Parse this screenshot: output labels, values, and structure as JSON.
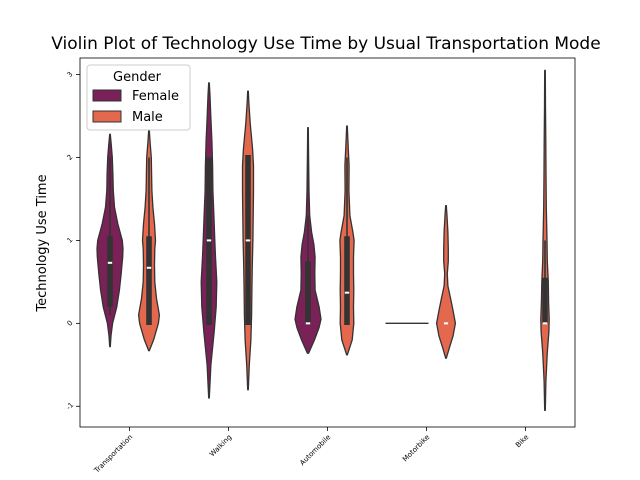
{
  "chart_data": {
    "type": "violin",
    "title": "Violin Plot of Technology Use Time by Usual Transportation Mode",
    "xlabel": "",
    "ylabel": "Technology Use Time",
    "ylim": [
      -1.25,
      3.2
    ],
    "yticks": [
      -1,
      0,
      1,
      2,
      3
    ],
    "categories": [
      "Public Transportation",
      "Walking",
      "Automobile",
      "Motorbike",
      "Bike"
    ],
    "category_labels_visible": [
      "Transportation",
      "Walking",
      "Automobile",
      "Motorbike",
      "Bike"
    ],
    "legend": {
      "title": "Gender",
      "position": "upper-left"
    },
    "series": [
      {
        "name": "Female",
        "color": "#7a2157",
        "violins": [
          {
            "category": "Public Transportation",
            "min": -0.28,
            "max": 2.28,
            "q1": 0.2,
            "median": 0.73,
            "q3": 1.05,
            "whisker_low": 0.1,
            "whisker_high": 2.0,
            "profile": [
              [
                -0.28,
                0.02
              ],
              [
                -0.15,
                0.08
              ],
              [
                0.0,
                0.2
              ],
              [
                0.2,
                0.52
              ],
              [
                0.4,
                0.72
              ],
              [
                0.6,
                0.86
              ],
              [
                0.8,
                0.98
              ],
              [
                0.9,
                1.0
              ],
              [
                1.0,
                0.95
              ],
              [
                1.2,
                0.6
              ],
              [
                1.4,
                0.35
              ],
              [
                1.6,
                0.25
              ],
              [
                1.8,
                0.22
              ],
              [
                2.0,
                0.18
              ],
              [
                2.15,
                0.1
              ],
              [
                2.28,
                0.02
              ]
            ]
          },
          {
            "category": "Walking",
            "min": -0.9,
            "max": 2.9,
            "q1": -0.02,
            "median": 1.0,
            "q3": 2.0,
            "whisker_low": -0.02,
            "whisker_high": 2.0,
            "profile": [
              [
                -0.9,
                0.02
              ],
              [
                -0.5,
                0.15
              ],
              [
                -0.1,
                0.4
              ],
              [
                0.2,
                0.55
              ],
              [
                0.5,
                0.6
              ],
              [
                0.8,
                0.5
              ],
              [
                1.0,
                0.45
              ],
              [
                1.3,
                0.38
              ],
              [
                1.6,
                0.3
              ],
              [
                1.9,
                0.28
              ],
              [
                2.2,
                0.22
              ],
              [
                2.5,
                0.14
              ],
              [
                2.75,
                0.08
              ],
              [
                2.9,
                0.02
              ]
            ]
          },
          {
            "category": "Automobile",
            "min": -0.36,
            "max": 2.36,
            "q1": 0.0,
            "median": 0.0,
            "q3": 0.75,
            "whisker_low": 0.0,
            "whisker_high": 1.3,
            "profile": [
              [
                -0.36,
                0.05
              ],
              [
                -0.2,
                0.5
              ],
              [
                -0.05,
                0.85
              ],
              [
                0.05,
                1.0
              ],
              [
                0.2,
                0.85
              ],
              [
                0.4,
                0.55
              ],
              [
                0.6,
                0.52
              ],
              [
                0.8,
                0.55
              ],
              [
                0.95,
                0.45
              ],
              [
                1.1,
                0.28
              ],
              [
                1.3,
                0.13
              ],
              [
                1.6,
                0.08
              ],
              [
                2.0,
                0.05
              ],
              [
                2.36,
                0.02
              ]
            ]
          },
          {
            "category": "Motorbike",
            "min": 0.0,
            "max": 0.0,
            "q1": 0.0,
            "median": 0.0,
            "q3": 0.0,
            "whisker_low": 0.0,
            "whisker_high": 0.0,
            "profile": []
          },
          {
            "category": "Bike",
            "min": null,
            "max": null,
            "q1": null,
            "median": null,
            "q3": null,
            "whisker_low": null,
            "whisker_high": null,
            "profile": []
          }
        ]
      },
      {
        "name": "Male",
        "color": "#e3684e",
        "violins": [
          {
            "category": "Public Transportation",
            "min": -0.33,
            "max": 2.33,
            "q1": -0.02,
            "median": 0.67,
            "q3": 1.05,
            "whisker_low": -0.02,
            "whisker_high": 2.0,
            "profile": [
              [
                -0.33,
                0.02
              ],
              [
                -0.2,
                0.35
              ],
              [
                0.0,
                0.72
              ],
              [
                0.1,
                0.8
              ],
              [
                0.3,
                0.58
              ],
              [
                0.5,
                0.45
              ],
              [
                0.7,
                0.42
              ],
              [
                0.9,
                0.45
              ],
              [
                1.0,
                0.5
              ],
              [
                1.2,
                0.42
              ],
              [
                1.4,
                0.3
              ],
              [
                1.6,
                0.22
              ],
              [
                1.8,
                0.2
              ],
              [
                2.0,
                0.18
              ],
              [
                2.2,
                0.08
              ],
              [
                2.33,
                0.02
              ]
            ]
          },
          {
            "category": "Walking",
            "min": -0.8,
            "max": 2.8,
            "q1": -0.02,
            "median": 1.0,
            "q3": 2.03,
            "whisker_low": -0.02,
            "whisker_high": 2.03,
            "profile": [
              [
                -0.8,
                0.02
              ],
              [
                -0.5,
                0.1
              ],
              [
                -0.2,
                0.22
              ],
              [
                0.1,
                0.28
              ],
              [
                0.4,
                0.3
              ],
              [
                0.7,
                0.33
              ],
              [
                1.0,
                0.38
              ],
              [
                1.3,
                0.4
              ],
              [
                1.6,
                0.42
              ],
              [
                1.9,
                0.42
              ],
              [
                2.1,
                0.35
              ],
              [
                2.4,
                0.18
              ],
              [
                2.65,
                0.07
              ],
              [
                2.8,
                0.02
              ]
            ]
          },
          {
            "category": "Automobile",
            "min": -0.38,
            "max": 2.38,
            "q1": -0.02,
            "median": 0.37,
            "q3": 1.05,
            "whisker_low": -0.02,
            "whisker_high": 2.0,
            "profile": [
              [
                -0.38,
                0.02
              ],
              [
                -0.2,
                0.4
              ],
              [
                0.0,
                0.52
              ],
              [
                0.2,
                0.5
              ],
              [
                0.4,
                0.52
              ],
              [
                0.6,
                0.5
              ],
              [
                0.8,
                0.5
              ],
              [
                1.0,
                0.55
              ],
              [
                1.1,
                0.45
              ],
              [
                1.3,
                0.22
              ],
              [
                1.6,
                0.15
              ],
              [
                1.9,
                0.16
              ],
              [
                2.1,
                0.1
              ],
              [
                2.38,
                0.02
              ]
            ]
          },
          {
            "category": "Motorbike",
            "min": -0.42,
            "max": 1.42,
            "q1": 0.0,
            "median": 0.0,
            "q3": 0.0,
            "whisker_low": 0.0,
            "whisker_high": 0.0,
            "profile": [
              [
                -0.42,
                0.02
              ],
              [
                -0.3,
                0.25
              ],
              [
                -0.15,
                0.55
              ],
              [
                0.0,
                0.72
              ],
              [
                0.15,
                0.55
              ],
              [
                0.3,
                0.35
              ],
              [
                0.45,
                0.15
              ],
              [
                0.6,
                0.1
              ],
              [
                0.75,
                0.18
              ],
              [
                0.9,
                0.18
              ],
              [
                1.1,
                0.15
              ],
              [
                1.3,
                0.08
              ],
              [
                1.42,
                0.02
              ]
            ]
          },
          {
            "category": "Bike",
            "min": -1.05,
            "max": 3.05,
            "q1": 0.0,
            "median": 0.0,
            "q3": 0.55,
            "whisker_low": 0.0,
            "whisker_high": 1.0,
            "profile": [
              [
                -1.05,
                0.02
              ],
              [
                -0.7,
                0.07
              ],
              [
                -0.35,
                0.18
              ],
              [
                -0.1,
                0.3
              ],
              [
                0.05,
                0.32
              ],
              [
                0.25,
                0.28
              ],
              [
                0.5,
                0.25
              ],
              [
                0.75,
                0.18
              ],
              [
                1.0,
                0.15
              ],
              [
                1.4,
                0.1
              ],
              [
                1.8,
                0.08
              ],
              [
                2.2,
                0.06
              ],
              [
                2.6,
                0.04
              ],
              [
                3.05,
                0.02
              ]
            ]
          }
        ]
      }
    ]
  }
}
